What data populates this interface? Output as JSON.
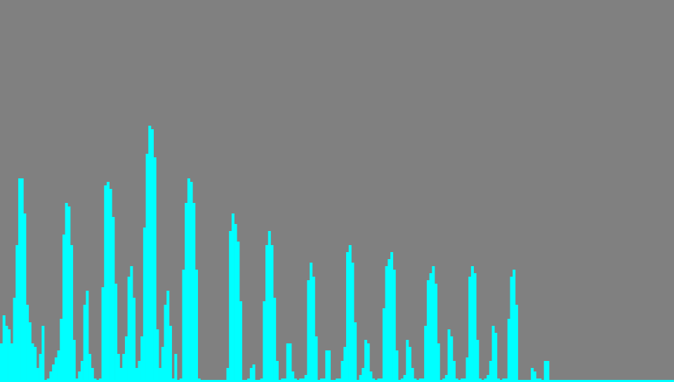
{
  "colors": {
    "background": "#808080",
    "bar": "#00ffff"
  },
  "chart_data": {
    "type": "bar",
    "ylim": [
      0,
      544
    ],
    "grid": false,
    "legend": "none",
    "values": [
      55,
      95,
      80,
      75,
      55,
      120,
      195,
      290,
      290,
      240,
      110,
      85,
      55,
      50,
      20,
      40,
      80,
      0,
      5,
      15,
      25,
      35,
      45,
      90,
      210,
      255,
      250,
      195,
      60,
      5,
      15,
      30,
      110,
      130,
      40,
      20,
      5,
      0,
      5,
      135,
      280,
      285,
      275,
      235,
      140,
      40,
      20,
      40,
      65,
      150,
      165,
      120,
      20,
      30,
      65,
      220,
      325,
      365,
      360,
      320,
      75,
      20,
      50,
      110,
      130,
      80,
      5,
      40,
      0,
      5,
      160,
      255,
      290,
      285,
      255,
      160,
      5,
      0,
      3,
      0,
      0,
      0,
      3,
      0,
      0,
      3,
      0,
      20,
      215,
      240,
      225,
      200,
      115,
      0,
      3,
      5,
      20,
      25,
      0,
      0,
      5,
      115,
      195,
      215,
      195,
      120,
      30,
      0,
      5,
      5,
      55,
      55,
      15,
      5,
      0,
      5,
      5,
      10,
      145,
      170,
      150,
      65,
      3,
      5,
      5,
      45,
      45,
      0,
      0,
      5,
      5,
      30,
      50,
      185,
      195,
      170,
      85,
      3,
      10,
      20,
      60,
      55,
      15,
      5,
      0,
      5,
      5,
      105,
      165,
      175,
      185,
      160,
      45,
      3,
      5,
      10,
      60,
      50,
      20,
      5,
      0,
      5,
      5,
      80,
      145,
      155,
      165,
      140,
      55,
      3,
      5,
      10,
      75,
      65,
      30,
      5,
      0,
      5,
      5,
      35,
      150,
      165,
      155,
      60,
      5,
      3,
      5,
      10,
      30,
      80,
      70,
      5,
      0,
      5,
      5,
      90,
      150,
      160,
      110,
      0,
      3,
      0,
      0,
      3,
      20,
      15,
      5,
      5,
      0,
      30,
      30,
      0,
      0,
      0,
      0,
      0,
      0,
      0,
      0,
      0,
      0,
      0,
      0,
      0,
      0,
      0,
      0,
      0,
      0,
      0,
      0,
      0,
      0,
      0,
      0,
      0,
      0,
      0,
      0,
      0,
      0,
      0,
      0,
      0,
      0,
      0,
      0,
      0,
      0,
      0,
      0,
      0,
      0,
      0,
      0,
      0,
      0,
      0,
      0
    ],
    "baseline_strip": 3
  }
}
